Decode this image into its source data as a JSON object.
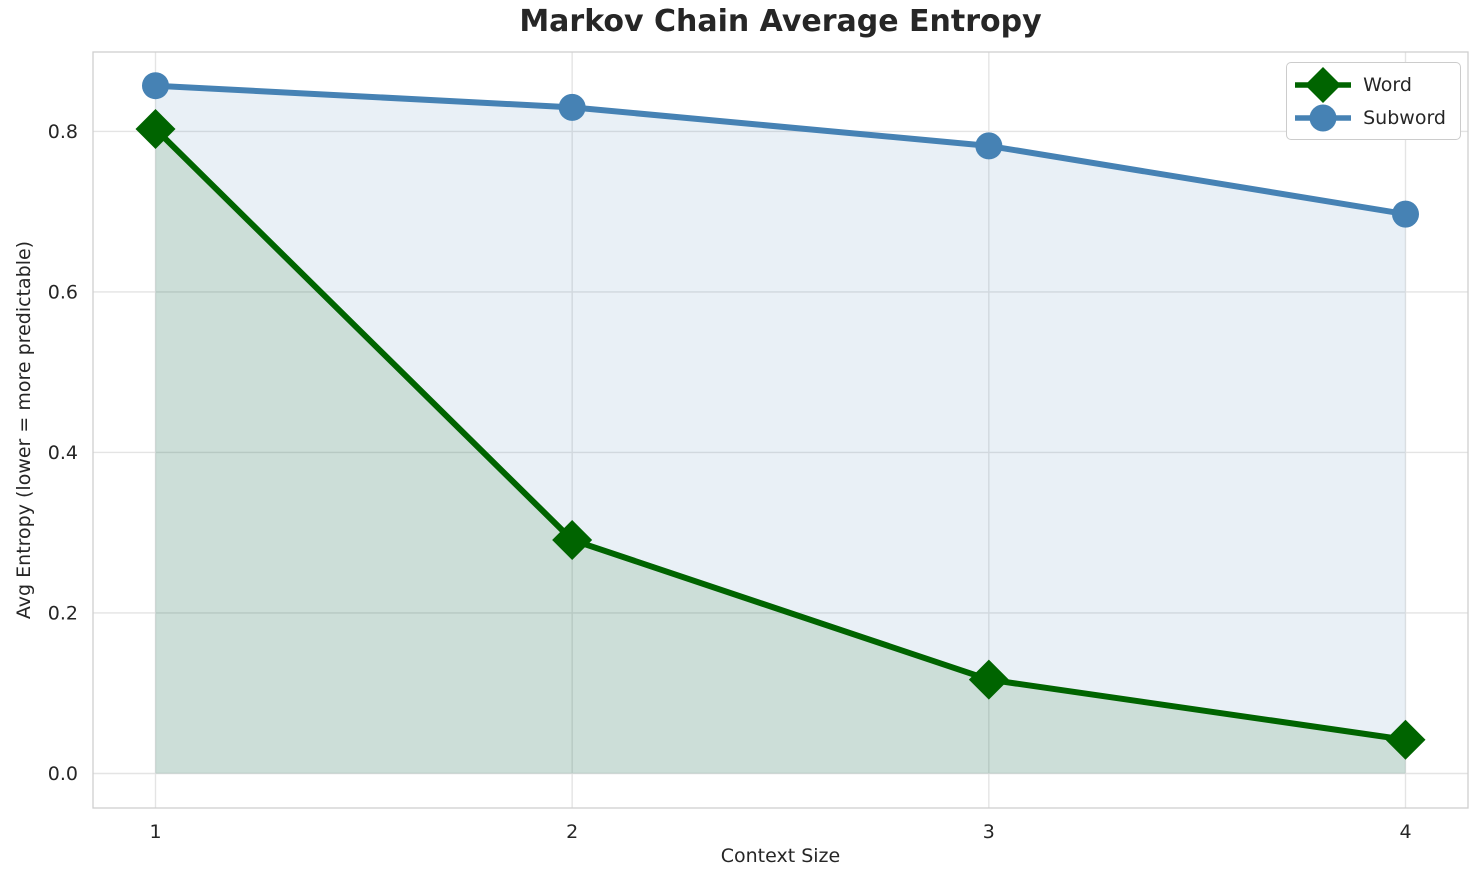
{
  "chart_data": {
    "type": "line",
    "title": "Markov Chain Average Entropy",
    "xlabel": "Context Size",
    "ylabel": "Avg Entropy (lower = more predictable)",
    "x": [
      1,
      2,
      3,
      4
    ],
    "series": [
      {
        "name": "Word",
        "color": "#006400",
        "marker": "diamond",
        "values": [
          0.803,
          0.291,
          0.117,
          0.042
        ]
      },
      {
        "name": "Subword",
        "color": "#4682B4",
        "marker": "circle",
        "values": [
          0.857,
          0.83,
          0.782,
          0.697
        ]
      }
    ],
    "fill_to_zero": true,
    "fill_alpha": 0.12,
    "xlim": [
      0.85,
      4.15
    ],
    "ylim": [
      -0.043,
      0.899
    ],
    "xticks": [
      "1",
      "2",
      "3",
      "4"
    ],
    "xtick_values": [
      1,
      2,
      3,
      4
    ],
    "yticks": [
      "0.0",
      "0.2",
      "0.4",
      "0.6",
      "0.8"
    ],
    "ytick_values": [
      0,
      0.2,
      0.4,
      0.6,
      0.8
    ],
    "grid": true,
    "legend_position": "upper right",
    "colors": {
      "text": "#262626",
      "grid": "#e4e4e4",
      "spine": "#cfcfcf",
      "background": "#ffffff"
    }
  }
}
